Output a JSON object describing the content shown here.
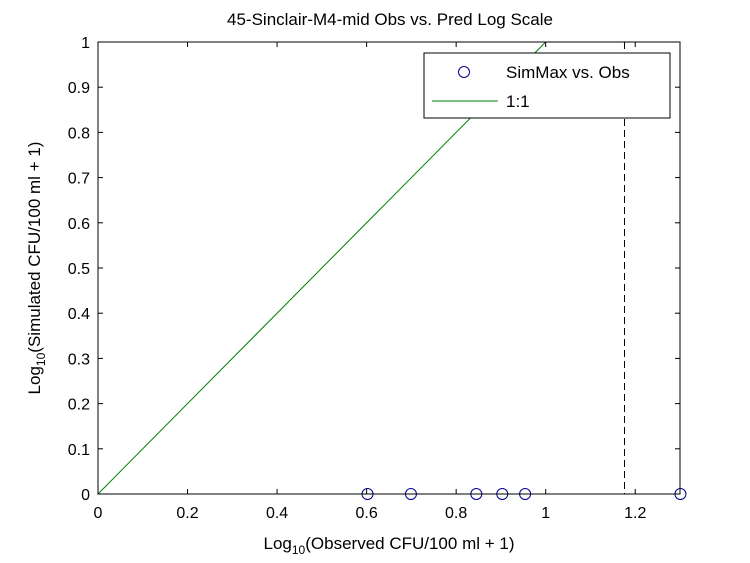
{
  "chart_data": {
    "type": "scatter",
    "title": "45-Sinclair-M4-mid Obs vs. Pred Log Scale",
    "xlabel": {
      "prefix": "Log",
      "sub": "10",
      "rest": "(Observed CFU/100 ml + 1)"
    },
    "ylabel": {
      "prefix": "Log",
      "sub": "10",
      "rest": "(Simulated CFU/100 ml + 1)"
    },
    "xlim": [
      0,
      1.3
    ],
    "ylim": [
      0,
      1
    ],
    "xticks": [
      0,
      0.2,
      0.4,
      0.6,
      0.8,
      1,
      1.2
    ],
    "xtick_labels": [
      "0",
      "0.2",
      "0.4",
      "0.6",
      "0.8",
      "1",
      "1.2"
    ],
    "yticks": [
      0,
      0.1,
      0.2,
      0.3,
      0.4,
      0.5,
      0.6,
      0.7,
      0.8,
      0.9,
      1
    ],
    "ytick_labels": [
      "0",
      "0.1",
      "0.2",
      "0.3",
      "0.4",
      "0.5",
      "0.6",
      "0.7",
      "0.8",
      "0.9",
      "1"
    ],
    "grid": false,
    "legend_position": "top-right",
    "series": [
      {
        "name": "SimMax vs. Obs",
        "kind": "scatter",
        "marker": "open-circle",
        "color": "#00008b",
        "x": [
          0.602,
          0.699,
          0.845,
          0.903,
          0.954,
          1.301
        ],
        "y": [
          0,
          0,
          0,
          0,
          0,
          0
        ]
      },
      {
        "name": "1:1",
        "kind": "line",
        "color": "#008000",
        "x": [
          0,
          1
        ],
        "y": [
          0,
          1
        ]
      }
    ],
    "reference_lines": [
      {
        "orientation": "vertical",
        "x": 1.176,
        "style": "dashed",
        "color": "#000000"
      }
    ]
  }
}
